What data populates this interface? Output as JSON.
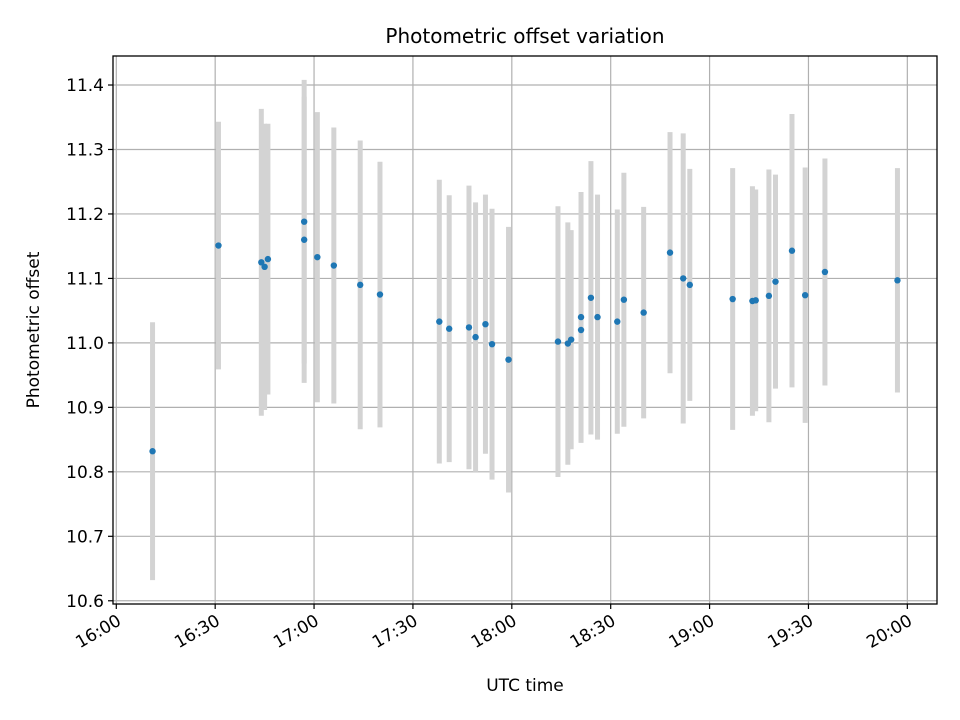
{
  "chart_data": {
    "type": "scatter",
    "title": "Photometric offset variation",
    "xlabel": "UTC time",
    "ylabel": "Photometric offset",
    "x_tick_labels": [
      "16:00",
      "16:30",
      "17:00",
      "17:30",
      "18:00",
      "18:30",
      "19:00",
      "19:30",
      "20:00"
    ],
    "y_tick_labels": [
      "10.6",
      "10.7",
      "10.8",
      "10.9",
      "11.0",
      "11.1",
      "11.2",
      "11.3",
      "11.4"
    ],
    "xlim": [
      "15:59",
      "20:09"
    ],
    "ylim": [
      10.595,
      11.445
    ],
    "grid": true,
    "marker_color": "#1f77b4",
    "errorbar_color": "#d3d3d3",
    "points": [
      {
        "x": "16:11",
        "y": 10.832,
        "err": 0.2
      },
      {
        "x": "16:31",
        "y": 11.151,
        "err": 0.192
      },
      {
        "x": "16:44",
        "y": 11.125,
        "err": 0.238
      },
      {
        "x": "16:45",
        "y": 11.118,
        "err": 0.222
      },
      {
        "x": "16:46",
        "y": 11.13,
        "err": 0.21
      },
      {
        "x": "16:57",
        "y": 11.16,
        "err": 0.222
      },
      {
        "x": "16:57",
        "y": 11.188,
        "err": 0.22
      },
      {
        "x": "17:01",
        "y": 11.133,
        "err": 0.225
      },
      {
        "x": "17:06",
        "y": 11.12,
        "err": 0.214
      },
      {
        "x": "17:14",
        "y": 11.09,
        "err": 0.224
      },
      {
        "x": "17:20",
        "y": 11.075,
        "err": 0.206
      },
      {
        "x": "17:38",
        "y": 11.033,
        "err": 0.22
      },
      {
        "x": "17:41",
        "y": 11.022,
        "err": 0.207
      },
      {
        "x": "17:47",
        "y": 11.024,
        "err": 0.22
      },
      {
        "x": "17:49",
        "y": 11.009,
        "err": 0.209
      },
      {
        "x": "17:52",
        "y": 11.029,
        "err": 0.201
      },
      {
        "x": "17:54",
        "y": 10.998,
        "err": 0.21
      },
      {
        "x": "17:59",
        "y": 10.974,
        "err": 0.206
      },
      {
        "x": "18:14",
        "y": 11.002,
        "err": 0.21
      },
      {
        "x": "18:17",
        "y": 10.999,
        "err": 0.188
      },
      {
        "x": "18:18",
        "y": 11.005,
        "err": 0.17
      },
      {
        "x": "18:21",
        "y": 11.02,
        "err": 0.175
      },
      {
        "x": "18:21",
        "y": 11.04,
        "err": 0.194
      },
      {
        "x": "18:24",
        "y": 11.07,
        "err": 0.212
      },
      {
        "x": "18:26",
        "y": 11.04,
        "err": 0.19
      },
      {
        "x": "18:32",
        "y": 11.033,
        "err": 0.174
      },
      {
        "x": "18:34",
        "y": 11.067,
        "err": 0.197
      },
      {
        "x": "18:40",
        "y": 11.047,
        "err": 0.164
      },
      {
        "x": "18:48",
        "y": 11.14,
        "err": 0.187
      },
      {
        "x": "18:52",
        "y": 11.1,
        "err": 0.225
      },
      {
        "x": "18:54",
        "y": 11.09,
        "err": 0.18
      },
      {
        "x": "19:07",
        "y": 11.068,
        "err": 0.203
      },
      {
        "x": "19:13",
        "y": 11.065,
        "err": 0.178
      },
      {
        "x": "19:14",
        "y": 11.066,
        "err": 0.172
      },
      {
        "x": "19:18",
        "y": 11.073,
        "err": 0.196
      },
      {
        "x": "19:20",
        "y": 11.095,
        "err": 0.166
      },
      {
        "x": "19:25",
        "y": 11.143,
        "err": 0.212
      },
      {
        "x": "19:29",
        "y": 11.074,
        "err": 0.198
      },
      {
        "x": "19:35",
        "y": 11.11,
        "err": 0.176
      },
      {
        "x": "19:57",
        "y": 11.097,
        "err": 0.174
      }
    ]
  }
}
